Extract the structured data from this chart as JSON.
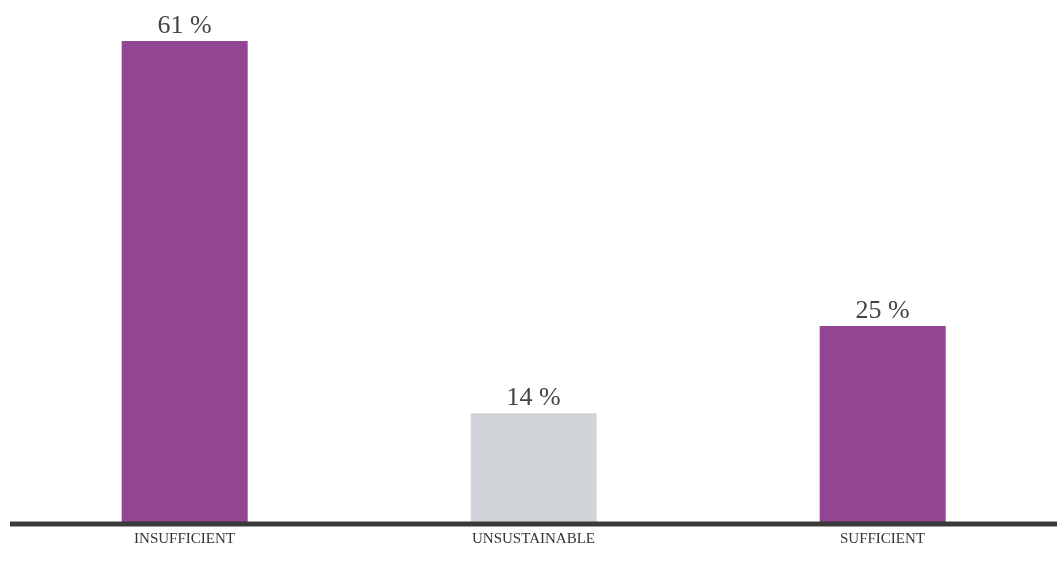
{
  "chart_data": {
    "type": "bar",
    "categories": [
      "INSUFFICIENT",
      "UNSUSTAINABLE",
      "SUFFICIENT"
    ],
    "values": [
      61,
      14,
      25
    ],
    "colors": [
      "#924592",
      "#d1d4d8",
      "#924592"
    ],
    "value_labels": [
      "61 %",
      "14 %",
      "25 %"
    ],
    "tick_labels": "x"
  }
}
